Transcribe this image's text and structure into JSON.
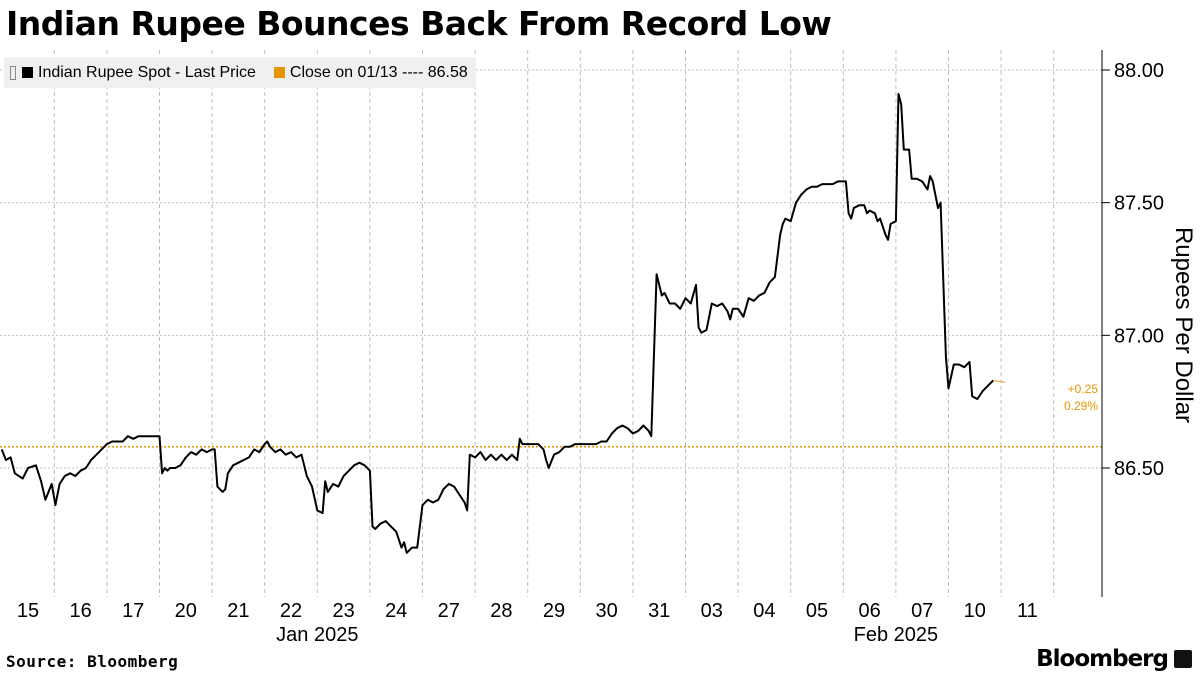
{
  "header": {
    "title": "Indian Rupee Bounces Back From Record Low"
  },
  "footer": {
    "source": "Source: Bloomberg",
    "brand": "Bloomberg"
  },
  "colors": {
    "line": "#000000",
    "close_line": "#e69500",
    "grid": "#bfbfbf",
    "legend_bg": "#f0f0f0"
  },
  "chart_data": {
    "type": "line",
    "title": "Indian Rupee Bounces Back From Record Low",
    "ylabel": "Rupees Per Dollar",
    "ylim": [
      86.15,
      88.06
    ],
    "yticks": [
      "88.00",
      "87.50",
      "87.00",
      "86.50"
    ],
    "x_day_labels": [
      "15",
      "16",
      "17",
      "20",
      "21",
      "22",
      "23",
      "24",
      "27",
      "28",
      "29",
      "30",
      "31",
      "03",
      "04",
      "05",
      "06",
      "07",
      "10",
      "11"
    ],
    "x_month_labels": [
      {
        "label": "Jan 2025",
        "day_index": 5.5
      },
      {
        "label": "Feb 2025",
        "day_index": 16.5
      }
    ],
    "legend": [
      {
        "label": "Indian Rupee Spot - Last Price",
        "color": "#000000"
      },
      {
        "label": "Close on 01/13 ---- 86.58",
        "color": "#e69500"
      }
    ],
    "reference_line": {
      "label": "Close on 01/13",
      "value": 86.58
    },
    "last_change": {
      "abs": "+0.25",
      "pct": "0.29%"
    },
    "grid": true,
    "series": [
      {
        "name": "Indian Rupee Spot - Last Price",
        "points_day_index": [
          [
            -0.5,
            86.57
          ],
          [
            -0.42,
            86.53
          ],
          [
            -0.33,
            86.54
          ],
          [
            -0.25,
            86.48
          ],
          [
            -0.1,
            86.46
          ],
          [
            0.0,
            86.5
          ],
          [
            0.15,
            86.51
          ],
          [
            0.25,
            86.45
          ],
          [
            0.33,
            86.38
          ],
          [
            0.45,
            86.44
          ],
          [
            0.52,
            86.36
          ],
          [
            0.6,
            86.44
          ],
          [
            0.7,
            86.47
          ],
          [
            0.8,
            86.48
          ],
          [
            0.9,
            86.47
          ],
          [
            1.0,
            86.49
          ],
          [
            1.1,
            86.5
          ],
          [
            1.2,
            86.53
          ],
          [
            1.3,
            86.55
          ],
          [
            1.4,
            86.57
          ],
          [
            1.5,
            86.59
          ],
          [
            1.6,
            86.6
          ],
          [
            1.7,
            86.6
          ],
          [
            1.8,
            86.6
          ],
          [
            1.9,
            86.62
          ],
          [
            2.0,
            86.61
          ],
          [
            2.1,
            86.62
          ],
          [
            2.2,
            86.62
          ],
          [
            2.5,
            86.62
          ],
          [
            2.55,
            86.48
          ],
          [
            2.6,
            86.5
          ],
          [
            2.65,
            86.49
          ],
          [
            2.7,
            86.5
          ],
          [
            2.8,
            86.5
          ],
          [
            2.9,
            86.51
          ],
          [
            3.0,
            86.54
          ],
          [
            3.1,
            86.56
          ],
          [
            3.2,
            86.55
          ],
          [
            3.3,
            86.57
          ],
          [
            3.4,
            86.56
          ],
          [
            3.5,
            86.57
          ],
          [
            3.55,
            86.57
          ],
          [
            3.6,
            86.43
          ],
          [
            3.7,
            86.41
          ],
          [
            3.75,
            86.42
          ],
          [
            3.8,
            86.48
          ],
          [
            3.9,
            86.51
          ],
          [
            4.0,
            86.52
          ],
          [
            4.1,
            86.53
          ],
          [
            4.2,
            86.54
          ],
          [
            4.3,
            86.57
          ],
          [
            4.4,
            86.56
          ],
          [
            4.5,
            86.59
          ],
          [
            4.55,
            86.6
          ],
          [
            4.6,
            86.58
          ],
          [
            4.7,
            86.56
          ],
          [
            4.8,
            86.57
          ],
          [
            4.9,
            86.55
          ],
          [
            5.0,
            86.56
          ],
          [
            5.1,
            86.54
          ],
          [
            5.2,
            86.55
          ],
          [
            5.3,
            86.47
          ],
          [
            5.4,
            86.43
          ],
          [
            5.5,
            86.34
          ],
          [
            5.6,
            86.33
          ],
          [
            5.65,
            86.45
          ],
          [
            5.7,
            86.41
          ],
          [
            5.8,
            86.44
          ],
          [
            5.9,
            86.43
          ],
          [
            6.0,
            86.47
          ],
          [
            6.1,
            86.49
          ],
          [
            6.2,
            86.51
          ],
          [
            6.3,
            86.52
          ],
          [
            6.4,
            86.51
          ],
          [
            6.5,
            86.49
          ],
          [
            6.55,
            86.28
          ],
          [
            6.6,
            86.27
          ],
          [
            6.7,
            86.29
          ],
          [
            6.8,
            86.3
          ],
          [
            6.9,
            86.28
          ],
          [
            7.0,
            86.26
          ],
          [
            7.1,
            86.2
          ],
          [
            7.15,
            86.22
          ],
          [
            7.2,
            86.18
          ],
          [
            7.3,
            86.2
          ],
          [
            7.4,
            86.2
          ],
          [
            7.5,
            86.36
          ],
          [
            7.6,
            86.38
          ],
          [
            7.7,
            86.37
          ],
          [
            7.8,
            86.38
          ],
          [
            7.9,
            86.42
          ],
          [
            8.0,
            86.44
          ],
          [
            8.1,
            86.43
          ],
          [
            8.2,
            86.4
          ],
          [
            8.3,
            86.37
          ],
          [
            8.35,
            86.34
          ],
          [
            8.4,
            86.55
          ],
          [
            8.5,
            86.54
          ],
          [
            8.6,
            86.56
          ],
          [
            8.7,
            86.53
          ],
          [
            8.8,
            86.55
          ],
          [
            8.9,
            86.53
          ],
          [
            9.0,
            86.55
          ],
          [
            9.1,
            86.53
          ],
          [
            9.2,
            86.55
          ],
          [
            9.3,
            86.53
          ],
          [
            9.35,
            86.61
          ],
          [
            9.4,
            86.59
          ],
          [
            9.5,
            86.59
          ],
          [
            9.6,
            86.59
          ],
          [
            9.7,
            86.59
          ],
          [
            9.8,
            86.57
          ],
          [
            9.85,
            86.53
          ],
          [
            9.9,
            86.5
          ],
          [
            10.0,
            86.55
          ],
          [
            10.1,
            86.56
          ],
          [
            10.2,
            86.58
          ],
          [
            10.3,
            86.58
          ],
          [
            10.4,
            86.59
          ],
          [
            10.5,
            86.59
          ],
          [
            10.6,
            86.59
          ],
          [
            10.7,
            86.59
          ],
          [
            10.8,
            86.59
          ],
          [
            10.9,
            86.6
          ],
          [
            11.0,
            86.6
          ],
          [
            11.1,
            86.63
          ],
          [
            11.2,
            86.65
          ],
          [
            11.3,
            86.66
          ],
          [
            11.4,
            86.65
          ],
          [
            11.5,
            86.63
          ],
          [
            11.6,
            86.64
          ],
          [
            11.7,
            86.66
          ],
          [
            11.8,
            86.64
          ],
          [
            11.85,
            86.62
          ],
          [
            11.95,
            87.23
          ],
          [
            12.05,
            87.15
          ],
          [
            12.1,
            87.16
          ],
          [
            12.2,
            87.12
          ],
          [
            12.3,
            87.12
          ],
          [
            12.4,
            87.1
          ],
          [
            12.5,
            87.14
          ],
          [
            12.6,
            87.12
          ],
          [
            12.7,
            87.19
          ],
          [
            12.75,
            87.03
          ],
          [
            12.8,
            87.01
          ],
          [
            12.9,
            87.02
          ],
          [
            13.0,
            87.12
          ],
          [
            13.1,
            87.11
          ],
          [
            13.2,
            87.12
          ],
          [
            13.3,
            87.09
          ],
          [
            13.35,
            87.06
          ],
          [
            13.4,
            87.1
          ],
          [
            13.5,
            87.1
          ],
          [
            13.6,
            87.07
          ],
          [
            13.7,
            87.14
          ],
          [
            13.8,
            87.13
          ],
          [
            13.9,
            87.15
          ],
          [
            14.0,
            87.16
          ],
          [
            14.1,
            87.2
          ],
          [
            14.2,
            87.22
          ],
          [
            14.3,
            87.38
          ],
          [
            14.35,
            87.42
          ],
          [
            14.4,
            87.44
          ],
          [
            14.5,
            87.43
          ],
          [
            14.6,
            87.5
          ],
          [
            14.7,
            87.53
          ],
          [
            14.8,
            87.55
          ],
          [
            14.9,
            87.56
          ],
          [
            15.0,
            87.56
          ],
          [
            15.1,
            87.57
          ],
          [
            15.2,
            87.57
          ],
          [
            15.3,
            87.57
          ],
          [
            15.4,
            87.58
          ],
          [
            15.5,
            87.58
          ],
          [
            15.55,
            87.58
          ],
          [
            15.6,
            87.46
          ],
          [
            15.65,
            87.44
          ],
          [
            15.7,
            87.48
          ],
          [
            15.8,
            87.49
          ],
          [
            15.9,
            87.49
          ],
          [
            15.95,
            87.46
          ],
          [
            16.0,
            87.47
          ],
          [
            16.1,
            87.46
          ],
          [
            16.15,
            87.43
          ],
          [
            16.2,
            87.44
          ],
          [
            16.3,
            87.38
          ],
          [
            16.35,
            87.36
          ],
          [
            16.4,
            87.42
          ],
          [
            16.5,
            87.43
          ],
          [
            16.55,
            87.91
          ],
          [
            16.6,
            87.87
          ],
          [
            16.65,
            87.7
          ],
          [
            16.7,
            87.7
          ],
          [
            16.75,
            87.7
          ],
          [
            16.8,
            87.59
          ],
          [
            16.9,
            87.59
          ],
          [
            17.0,
            87.58
          ],
          [
            17.1,
            87.55
          ],
          [
            17.15,
            87.6
          ],
          [
            17.2,
            87.58
          ],
          [
            17.3,
            87.48
          ],
          [
            17.35,
            87.5
          ],
          [
            17.45,
            86.92
          ],
          [
            17.5,
            86.8
          ],
          [
            17.6,
            86.89
          ],
          [
            17.7,
            86.89
          ],
          [
            17.8,
            86.88
          ],
          [
            17.9,
            86.9
          ],
          [
            17.95,
            86.77
          ],
          [
            18.05,
            86.76
          ],
          [
            18.15,
            86.79
          ],
          [
            18.25,
            86.81
          ],
          [
            18.35,
            86.83
          ]
        ]
      }
    ]
  }
}
